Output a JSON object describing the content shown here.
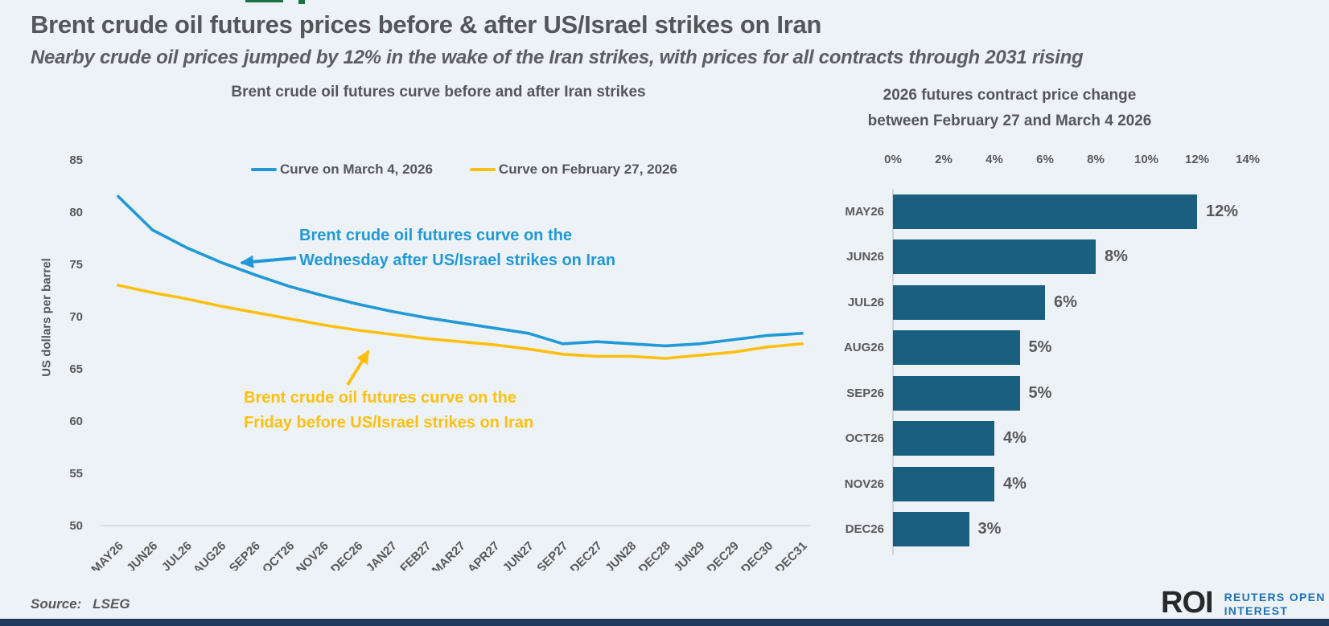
{
  "page": {
    "title": "Brent crude oil futures prices before & after US/Israel strikes on Iran",
    "subtitle": "Nearby crude oil prices jumped by 12% in the wake of the Iran strikes, with prices for all contracts through 2031 rising",
    "source_label": "Source:",
    "source_value": "LSEG",
    "logo": {
      "mark": "ROI",
      "line1": "REUTERS OPEN",
      "line2": "INTEREST"
    }
  },
  "colors": {
    "background": "#edf2f7",
    "title_text": "#54565a",
    "body_text": "#595959",
    "blue_curve": "#2199d6",
    "yellow_curve": "#fdc010",
    "bar_fill": "#1a5f80",
    "logo_blue": "#2173b9",
    "bottom_bar": "#1f3a5c",
    "green_accent": "#1e7145",
    "axis_line": "#d4dae0"
  },
  "chart_data": [
    {
      "type": "line",
      "title": "Brent crude oil futures curve before and after Iran strikes",
      "ylabel": "US dollars per barrel",
      "ylim": [
        50,
        85
      ],
      "yticks": [
        "85",
        "80",
        "75",
        "70",
        "65",
        "60",
        "55",
        "50"
      ],
      "grid": false,
      "legend_position": "top",
      "categories": [
        "MAY26",
        "JUN26",
        "JUL26",
        "AUG26",
        "SEP26",
        "OCT26",
        "NOV26",
        "DEC26",
        "JAN27",
        "FEB27",
        "MAR27",
        "APR27",
        "JUN27",
        "SEP27",
        "DEC27",
        "JUN28",
        "DEC28",
        "JUN29",
        "DEC29",
        "DEC30",
        "DEC31"
      ],
      "series": [
        {
          "name": "Curve on March 4, 2026",
          "color": "#2199d6",
          "values": [
            81.5,
            78.3,
            76.6,
            75.2,
            74.0,
            72.9,
            72.0,
            71.2,
            70.5,
            69.9,
            69.4,
            68.9,
            68.4,
            67.4,
            67.6,
            67.4,
            67.2,
            67.4,
            67.8,
            68.2,
            68.4
          ]
        },
        {
          "name": "Curve on February 27, 2026",
          "color": "#fdc010",
          "values": [
            73.0,
            72.3,
            71.7,
            71.0,
            70.4,
            69.8,
            69.2,
            68.7,
            68.3,
            67.9,
            67.6,
            67.3,
            66.9,
            66.4,
            66.2,
            66.2,
            66.0,
            66.3,
            66.6,
            67.1,
            67.4
          ]
        }
      ],
      "annotations": [
        {
          "line1": "Brent crude oil futures curve on the",
          "line2": "Wednesday after US/Israel strikes on Iran",
          "color": "#2199d6"
        },
        {
          "line1": "Brent crude oil futures curve on the",
          "line2": "Friday before US/Israel strikes on Iran",
          "color": "#fdc010"
        }
      ]
    },
    {
      "type": "bar",
      "orientation": "horizontal",
      "title_lines": [
        "2026 futures contract price change",
        "between February 27 and March 4 2026"
      ],
      "categories": [
        "MAY26",
        "JUN26",
        "JUL26",
        "AUG26",
        "SEP26",
        "OCT26",
        "NOV26",
        "DEC26"
      ],
      "values": [
        12,
        8,
        6,
        5,
        5,
        4,
        4,
        3
      ],
      "value_labels": [
        "12%",
        "8%",
        "6%",
        "5%",
        "5%",
        "4%",
        "4%",
        "3%"
      ],
      "xticks": [
        "0%",
        "2%",
        "4%",
        "6%",
        "8%",
        "10%",
        "12%",
        "14%"
      ],
      "xlim": [
        0,
        14
      ]
    }
  ]
}
